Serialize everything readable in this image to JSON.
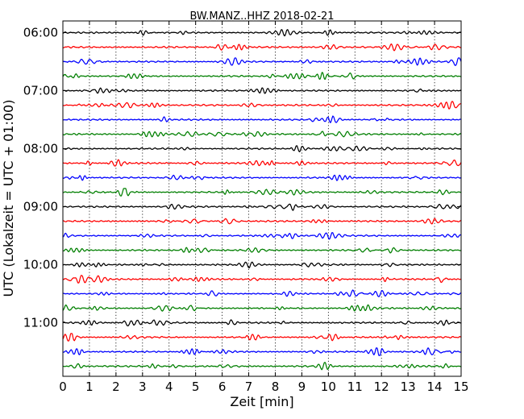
{
  "chart_data": {
    "type": "line",
    "subtype": "seismogram-helicorder",
    "title": "BW.MANZ..HHZ 2018-02-21",
    "xlabel": "Zeit  [min]",
    "ylabel": "UTC (Lokalzeit = UTC + 01:00)",
    "xlim": [
      0,
      15
    ],
    "x_ticks": [
      0,
      1,
      2,
      3,
      4,
      5,
      6,
      7,
      8,
      9,
      10,
      11,
      12,
      13,
      14,
      15
    ],
    "x_tick_labels": [
      "0",
      "1",
      "2",
      "3",
      "4",
      "5",
      "6",
      "7",
      "8",
      "9",
      "10",
      "11",
      "12",
      "13",
      "14",
      "15"
    ],
    "y_tick_labels": [
      "06:00",
      "07:00",
      "08:00",
      "09:00",
      "10:00",
      "11:00"
    ],
    "y_tick_trace_index": [
      0,
      4,
      8,
      12,
      16,
      20
    ],
    "trace_count": 24,
    "trace_minutes": 15,
    "trace_colors": [
      "#000000",
      "#ff0000",
      "#0000ff",
      "#007f00"
    ],
    "vertical_grid": "dotted"
  }
}
